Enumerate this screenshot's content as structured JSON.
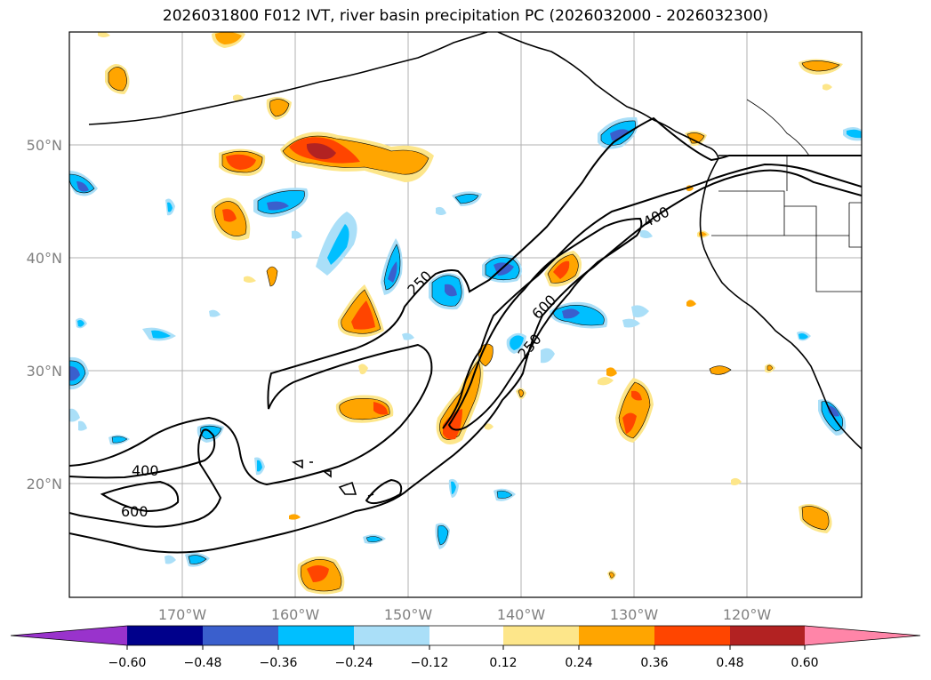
{
  "title": "2026031800 F012 IVT, river basin precipitation PC (2026032000 - 2026032300)",
  "map": {
    "lat_labels": [
      "50°N",
      "40°N",
      "30°N",
      "20°N"
    ],
    "lon_labels": [
      "170°W",
      "160°W",
      "150°W",
      "140°W",
      "130°W",
      "120°W"
    ],
    "lat_values": [
      50,
      40,
      30,
      20
    ],
    "lon_values": [
      -170,
      -160,
      -150,
      -140,
      -130,
      -120
    ],
    "ivt_contour_labels": [
      "250",
      "400",
      "600",
      "250",
      "600",
      "400"
    ]
  },
  "colorbar": {
    "tick_labels": [
      "−0.60",
      "−0.48",
      "−0.36",
      "−0.24",
      "−0.12",
      "0.12",
      "0.24",
      "0.36",
      "0.48",
      "0.60"
    ],
    "bins": [
      {
        "color": "#9933cc"
      },
      {
        "color": "#00008b"
      },
      {
        "color": "#3a5fcd"
      },
      {
        "color": "#00bfff"
      },
      {
        "color": "#aadff8"
      },
      {
        "color": "#ffffff"
      },
      {
        "color": "#fde68a"
      },
      {
        "color": "#ffa500"
      },
      {
        "color": "#ff4500"
      },
      {
        "color": "#b22222"
      },
      {
        "color": "#ff85a8"
      }
    ]
  }
}
